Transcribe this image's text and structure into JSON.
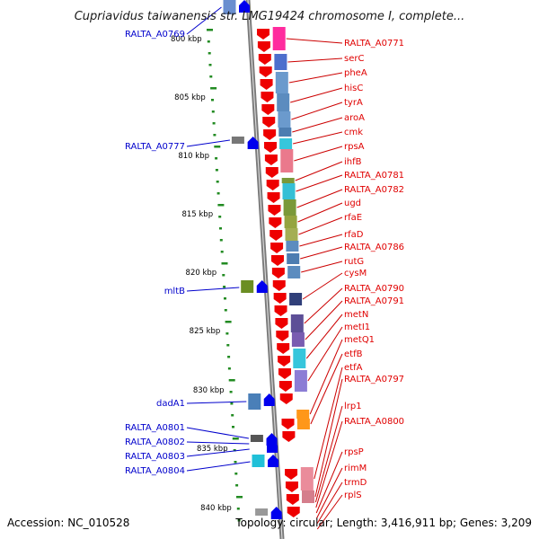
{
  "title": "Cupriavidus taiwanensis str. LMG19424 chromosome I, complete...",
  "footer": {
    "accession": "Accession: NC_010528",
    "topology": "Topology: circular; Length: 3,416,911 bp; Genes: 3,209"
  },
  "scale_labels": [
    "800 kbp",
    "805 kbp",
    "810 kbp",
    "815 kbp",
    "820 kbp",
    "825 kbp",
    "830 kbp",
    "835 kbp",
    "840 kbp"
  ],
  "left_genes": [
    {
      "name": "RALTA_A0769",
      "color": "#0000cc"
    },
    {
      "name": "RALTA_A0777",
      "color": "#0000cc"
    },
    {
      "name": "mltB",
      "color": "#0000cc"
    },
    {
      "name": "dadA1",
      "color": "#0000cc"
    },
    {
      "name": "RALTA_A0801",
      "color": "#0000cc"
    },
    {
      "name": "RALTA_A0802",
      "color": "#0000cc"
    },
    {
      "name": "RALTA_A0803",
      "color": "#0000cc"
    },
    {
      "name": "RALTA_A0804",
      "color": "#0000cc"
    }
  ],
  "right_genes": [
    {
      "name": "RALTA_A0771",
      "color": "#e00000"
    },
    {
      "name": "serC",
      "color": "#e00000"
    },
    {
      "name": "pheA",
      "color": "#e00000"
    },
    {
      "name": "hisC",
      "color": "#e00000"
    },
    {
      "name": "tyrA",
      "color": "#e00000"
    },
    {
      "name": "aroA",
      "color": "#e00000"
    },
    {
      "name": "cmk",
      "color": "#e00000"
    },
    {
      "name": "rpsA",
      "color": "#e00000"
    },
    {
      "name": "ihfB",
      "color": "#e00000"
    },
    {
      "name": "RALTA_A0781",
      "color": "#e00000"
    },
    {
      "name": "RALTA_A0782",
      "color": "#e00000"
    },
    {
      "name": "ugd",
      "color": "#e00000"
    },
    {
      "name": "rfaE",
      "color": "#e00000"
    },
    {
      "name": "rfaD",
      "color": "#e00000"
    },
    {
      "name": "RALTA_A0786",
      "color": "#e00000"
    },
    {
      "name": "rutG",
      "color": "#e00000"
    },
    {
      "name": "cysM",
      "color": "#e00000"
    },
    {
      "name": "RALTA_A0790",
      "color": "#e00000"
    },
    {
      "name": "RALTA_A0791",
      "color": "#e00000"
    },
    {
      "name": "metN",
      "color": "#e00000"
    },
    {
      "name": "metI1",
      "color": "#e00000"
    },
    {
      "name": "metQ1",
      "color": "#e00000"
    },
    {
      "name": "etfB",
      "color": "#e00000"
    },
    {
      "name": "etfA",
      "color": "#e00000"
    },
    {
      "name": "RALTA_A0797",
      "color": "#e00000"
    },
    {
      "name": "lrp1",
      "color": "#e00000"
    },
    {
      "name": "RALTA_A0800",
      "color": "#e00000"
    },
    {
      "name": "rpsP",
      "color": "#e00000"
    },
    {
      "name": "rimM",
      "color": "#e00000"
    },
    {
      "name": "trmD",
      "color": "#e00000"
    },
    {
      "name": "rplS",
      "color": "#e00000"
    }
  ]
}
